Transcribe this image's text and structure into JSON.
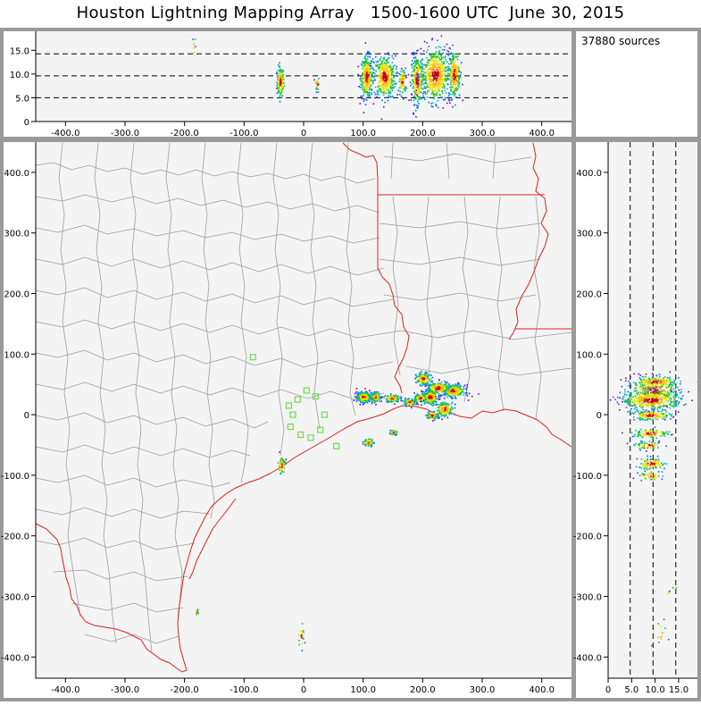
{
  "title": "Houston Lightning Mapping Array   1500-1600 UTC  June 30, 2015",
  "source_count": "37880 sources",
  "colors": {
    "frame": "#9a9a9a",
    "plot_bg": "#f4f4f4",
    "county": "#9c9c9c",
    "state": "#e02020",
    "station": "#5fdc3c"
  },
  "chart_data": [
    {
      "type": "scatter",
      "name": "altitude-vs-east-west",
      "x_ticks": [
        "-400.0",
        "-300.0",
        "-200.0",
        "-100.0",
        "0",
        "100.0",
        "200.0",
        "300.0",
        "400.0"
      ],
      "y_ticks": [
        "0",
        "5.0",
        "10.0",
        "15.0"
      ],
      "xlim": [
        -450,
        450
      ],
      "ylim": [
        0,
        19
      ],
      "dashed_lines_y": [
        5,
        10,
        15
      ],
      "clusters": [
        {
          "x": -40,
          "y": 8.5,
          "sx": 3,
          "sy": 1.6,
          "n": 160
        },
        {
          "x": 22,
          "y": 8,
          "sx": 1.5,
          "sy": 0.8,
          "n": 25
        },
        {
          "x": 105,
          "y": 9.5,
          "sx": 5,
          "sy": 2.2,
          "n": 320
        },
        {
          "x": 135,
          "y": 9.5,
          "sx": 9,
          "sy": 2.2,
          "n": 380
        },
        {
          "x": 165,
          "y": 8.5,
          "sx": 3,
          "sy": 1.4,
          "n": 70
        },
        {
          "x": 190,
          "y": 9,
          "sx": 5,
          "sy": 2.5,
          "n": 280
        },
        {
          "x": 220,
          "y": 10,
          "sx": 12,
          "sy": 2.8,
          "n": 500
        },
        {
          "x": 252,
          "y": 10,
          "sx": 5,
          "sy": 2.5,
          "n": 220
        },
        {
          "x": -185,
          "y": 16,
          "sx": 1,
          "sy": 2,
          "n": 8
        }
      ]
    },
    {
      "type": "scatter",
      "name": "plan-view-map",
      "x_ticks": [
        "-400.0",
        "-300.0",
        "-200.0",
        "-100.0",
        "0",
        "100.0",
        "200.0",
        "300.0",
        "400.0"
      ],
      "y_ticks": [
        "400.0",
        "300.0",
        "200.0",
        "100.0",
        "0",
        "-100.0",
        "-200.0",
        "-300.0",
        "-400.0"
      ],
      "xlim": [
        -450,
        450
      ],
      "ylim": [
        -435,
        450
      ],
      "clusters": [
        {
          "x": 100,
          "y": 30,
          "sx": 6,
          "sy": 4,
          "n": 380
        },
        {
          "x": 120,
          "y": 30,
          "sx": 4,
          "sy": 4,
          "n": 140
        },
        {
          "x": 148,
          "y": 28,
          "sx": 6,
          "sy": 3,
          "n": 120
        },
        {
          "x": 177,
          "y": 22,
          "sx": 5,
          "sy": 3,
          "n": 90
        },
        {
          "x": 195,
          "y": 28,
          "sx": 5,
          "sy": 4,
          "n": 120
        },
        {
          "x": 212,
          "y": 30,
          "sx": 6,
          "sy": 6,
          "n": 220
        },
        {
          "x": 250,
          "y": 40,
          "sx": 10,
          "sy": 5,
          "n": 300
        },
        {
          "x": 225,
          "y": 45,
          "sx": 10,
          "sy": 5,
          "n": 180
        },
        {
          "x": 200,
          "y": 60,
          "sx": 6,
          "sy": 5,
          "n": 140
        },
        {
          "x": 236,
          "y": 10,
          "sx": 7,
          "sy": 6,
          "n": 140
        },
        {
          "x": 215,
          "y": 0,
          "sx": 5,
          "sy": 3,
          "n": 90
        },
        {
          "x": 108,
          "y": -45,
          "sx": 4,
          "sy": 3,
          "n": 80
        },
        {
          "x": 150,
          "y": -28,
          "sx": 3,
          "sy": 2,
          "n": 40
        },
        {
          "x": -38,
          "y": -82,
          "sx": 3,
          "sy": 7,
          "n": 70
        },
        {
          "x": -180,
          "y": -325,
          "sx": 1.5,
          "sy": 2,
          "n": 14
        },
        {
          "x": -5,
          "y": -365,
          "sx": 3,
          "sy": 10,
          "n": 22
        }
      ],
      "stations": [
        [
          -85,
          95
        ],
        [
          -25,
          15
        ],
        [
          -22,
          -20
        ],
        [
          -10,
          25
        ],
        [
          5,
          40
        ],
        [
          20,
          30
        ],
        [
          35,
          0
        ],
        [
          -5,
          -33
        ],
        [
          12,
          -38
        ],
        [
          28,
          -25
        ],
        [
          55,
          -52
        ],
        [
          -18,
          0
        ]
      ]
    },
    {
      "type": "scatter",
      "name": "north-south-vs-altitude",
      "x_ticks": [
        "0",
        "5.0",
        "10.0",
        "15.0"
      ],
      "y_ticks": [
        "400.0",
        "300.0",
        "200.0",
        "100.0",
        "0",
        "-100.0",
        "-200.0",
        "-300.0",
        "-400.0"
      ],
      "xlim": [
        0,
        19
      ],
      "ylim": [
        -435,
        450
      ],
      "dashed_lines_x": [
        5,
        10,
        15
      ],
      "clusters": [
        {
          "x": 9.5,
          "y": 40,
          "sx": 2.8,
          "sy": 10,
          "n": 300
        },
        {
          "x": 9,
          "y": 25,
          "sx": 3.2,
          "sy": 8,
          "n": 350
        },
        {
          "x": 10,
          "y": 55,
          "sx": 2.5,
          "sy": 5,
          "n": 140
        },
        {
          "x": 9,
          "y": 0,
          "sx": 2.2,
          "sy": 4,
          "n": 140
        },
        {
          "x": 9,
          "y": -30,
          "sx": 2,
          "sy": 4,
          "n": 100
        },
        {
          "x": 8.5,
          "y": -50,
          "sx": 1.5,
          "sy": 3,
          "n": 60
        },
        {
          "x": 9,
          "y": -80,
          "sx": 1.6,
          "sy": 5,
          "n": 90
        },
        {
          "x": 9,
          "y": -100,
          "sx": 1.2,
          "sy": 4,
          "n": 40
        },
        {
          "x": 10.5,
          "y": -360,
          "sx": 1,
          "sy": 10,
          "n": 14
        },
        {
          "x": 13,
          "y": -290,
          "sx": 1.5,
          "sy": 4,
          "n": 5
        }
      ]
    }
  ]
}
